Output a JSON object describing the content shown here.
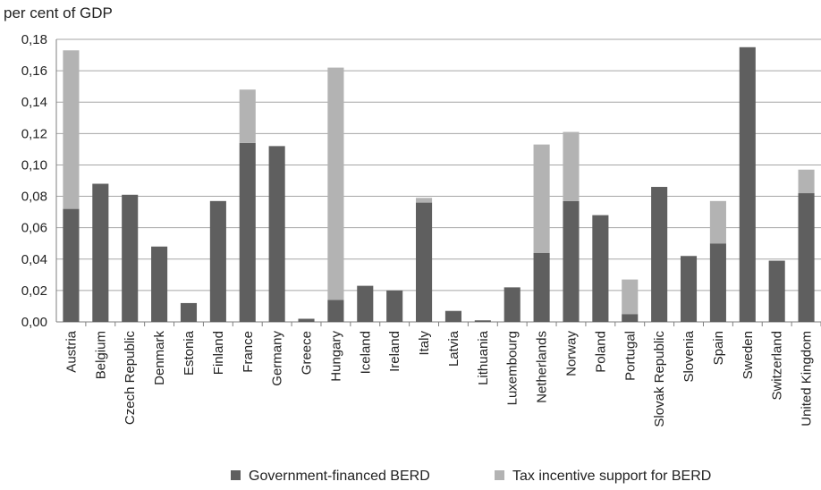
{
  "chart_data": {
    "type": "bar",
    "stacked": true,
    "ylabel": "per cent of GDP",
    "ylim": [
      0,
      0.18
    ],
    "yticks": [
      "0,00",
      "0,02",
      "0,04",
      "0,06",
      "0,08",
      "0,10",
      "0,12",
      "0,14",
      "0,16",
      "0,18"
    ],
    "grid": true,
    "legend_position": "bottom",
    "categories": [
      "Austria",
      "Belgium",
      "Czech Republic",
      "Denmark",
      "Estonia",
      "Finland",
      "France",
      "Germany",
      "Greece",
      "Hungary",
      "Iceland",
      "Ireland",
      "Italy",
      "Latvia",
      "Lithuania",
      "Luxembourg",
      "Netherlands",
      "Norway",
      "Poland",
      "Portugal",
      "Slovak Republic",
      "Slovenia",
      "Spain",
      "Sweden",
      "Switzerland",
      "United Kingdom"
    ],
    "series": [
      {
        "name": "Government-financed BERD",
        "color": "#5f5f5f",
        "values": [
          0.072,
          0.088,
          0.081,
          0.048,
          0.012,
          0.077,
          0.114,
          0.112,
          0.002,
          0.014,
          0.023,
          0.02,
          0.076,
          0.007,
          0.001,
          0.022,
          0.044,
          0.077,
          0.068,
          0.005,
          0.086,
          0.042,
          0.05,
          0.175,
          0.039,
          0.082
        ]
      },
      {
        "name": "Tax incentive support for BERD",
        "color": "#b3b3b3",
        "values": [
          0.101,
          0.0,
          0.0,
          0.0,
          0.0,
          0.0,
          0.034,
          0.0,
          0.0,
          0.148,
          0.0,
          0.0,
          0.003,
          0.0,
          0.0,
          0.0,
          0.069,
          0.044,
          0.0,
          0.022,
          0.0,
          0.0,
          0.027,
          0.0,
          0.0,
          0.015
        ]
      }
    ]
  }
}
